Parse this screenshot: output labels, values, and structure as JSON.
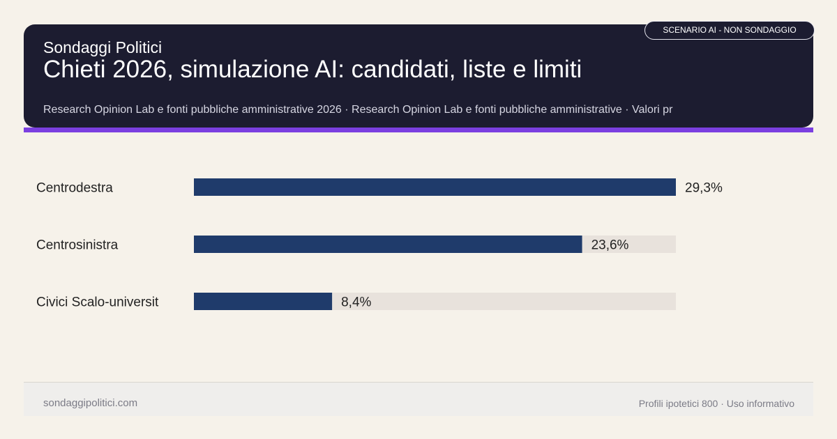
{
  "header": {
    "brand": "Sondaggi Politici",
    "title": "Chieti 2026, simulazione AI: candidati, liste e limiti",
    "subtitle": "Research Opinion Lab e fonti pubbliche amministrative 2026 · Research Opinion Lab e fonti pubbliche amministrative · Valori pr",
    "badge": "SCENARIO AI - NON SONDAGGIO"
  },
  "colors": {
    "header_bg": "#1c1c30",
    "accent": "#7b3fe0",
    "bar": "#1f3b6b",
    "track": "#e8e2dc",
    "page_bg": "#f6f2ea"
  },
  "chart_data": {
    "type": "bar",
    "orientation": "horizontal",
    "categories": [
      "Centrodestra",
      "Centrosinistra",
      "Civici Scalo-universit"
    ],
    "values": [
      29.3,
      23.6,
      8.4
    ],
    "value_labels": [
      "29,3%",
      "23,6%",
      "8,4%"
    ],
    "xlim": [
      0,
      29.3
    ],
    "grid": false,
    "legend": false
  },
  "footer": {
    "site": "sondaggipolitici.com",
    "note": "Profili ipotetici 800 · Uso informativo"
  }
}
